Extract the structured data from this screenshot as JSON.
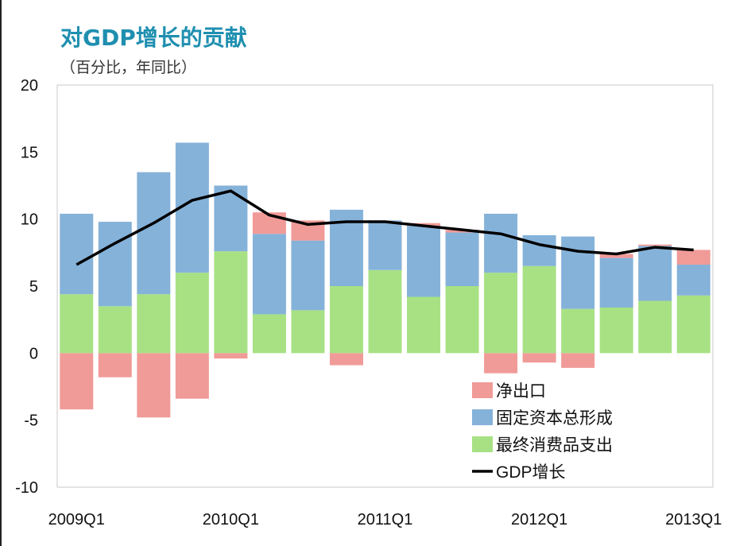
{
  "chart_data": {
    "type": "bar",
    "title": "对GDP增长的贡献",
    "subtitle": "（百分比，年同比）",
    "xlabel": "",
    "ylabel": "",
    "ylim": [
      -10,
      20
    ],
    "yticks": [
      20,
      15,
      10,
      5,
      0,
      -5,
      -10
    ],
    "categories": [
      "2009Q1",
      "2009Q2",
      "2009Q3",
      "2009Q4",
      "2010Q1",
      "2010Q2",
      "2010Q3",
      "2010Q4",
      "2011Q1",
      "2011Q2",
      "2011Q3",
      "2011Q4",
      "2012Q1",
      "2012Q2",
      "2012Q3",
      "2012Q4",
      "2013Q1"
    ],
    "xtick_labels": [
      "2009Q1",
      "2010Q1",
      "2011Q1",
      "2012Q1",
      "2013Q1"
    ],
    "grid": false,
    "stacked": true,
    "legend_position": "bottom-right",
    "series": [
      {
        "name": "净出口",
        "kind": "bar",
        "color": "#f09b98",
        "values": [
          -4.2,
          -1.8,
          -4.8,
          -3.4,
          -0.4,
          1.6,
          1.5,
          -0.9,
          0.0,
          0.2,
          0.2,
          -1.5,
          -0.7,
          -1.1,
          0.3,
          0.1,
          1.1
        ]
      },
      {
        "name": "固定资本总形成",
        "kind": "bar",
        "color": "#85b2d9",
        "values": [
          6.0,
          6.3,
          9.1,
          9.7,
          4.9,
          6.0,
          5.2,
          5.7,
          3.7,
          5.3,
          4.0,
          4.4,
          2.3,
          5.4,
          3.7,
          4.1,
          2.3
        ]
      },
      {
        "name": "最终消费品支出",
        "kind": "bar",
        "color": "#a7e184",
        "values": [
          4.4,
          3.5,
          4.4,
          6.0,
          7.6,
          2.9,
          3.2,
          5.0,
          6.2,
          4.2,
          5.0,
          6.0,
          6.5,
          3.3,
          3.4,
          3.9,
          4.3
        ]
      },
      {
        "name": "GDP增长",
        "kind": "line",
        "color": "#000000",
        "values": [
          6.6,
          8.2,
          9.7,
          11.4,
          12.1,
          10.3,
          9.6,
          9.8,
          9.8,
          9.5,
          9.2,
          8.9,
          8.1,
          7.6,
          7.4,
          7.9,
          7.7
        ]
      }
    ]
  }
}
